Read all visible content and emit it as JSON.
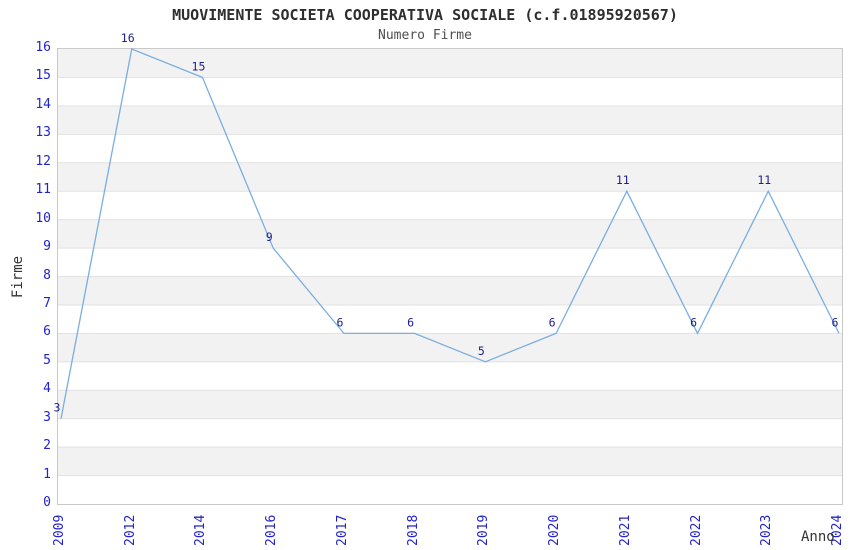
{
  "chart_data": {
    "type": "line",
    "title": "MUOVIMENTE SOCIETA COOPERATIVA SOCIALE (c.f.01895920567)",
    "subtitle": "Numero Firme",
    "xlabel": "Anno",
    "ylabel": "Firme",
    "categories": [
      "2009",
      "2012",
      "2014",
      "2016",
      "2017",
      "2018",
      "2019",
      "2020",
      "2021",
      "2022",
      "2023",
      "2024"
    ],
    "values": [
      3,
      16,
      15,
      9,
      6,
      6,
      5,
      6,
      11,
      6,
      11,
      6
    ],
    "ylim": [
      0,
      16
    ],
    "ytick_step": 1,
    "grid": "horizontal-bands-alternating",
    "legend": "none",
    "x_tick_rotation_deg": 90,
    "point_labels_shown": true,
    "colors": {
      "line": "#7aaee0",
      "point_label": "#1f1f8c",
      "tick_label": "#2323cc",
      "band_fill": "#f2f2f2",
      "gridline": "#e2e2e2",
      "spine": "#c9c9c9",
      "title": "#2e2e2e",
      "subtitle": "#4f4f4f",
      "axis_title": "#333333",
      "background": "#ffffff"
    }
  }
}
